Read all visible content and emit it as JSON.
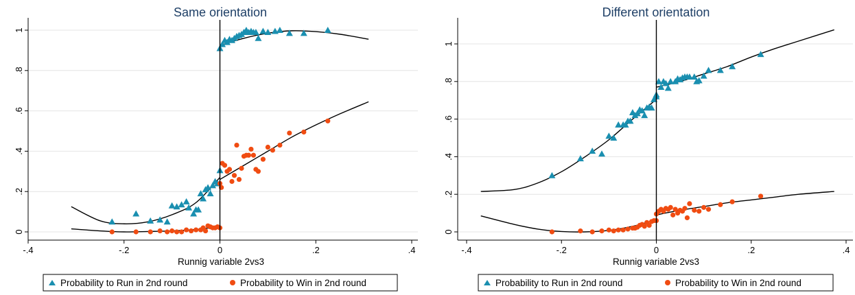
{
  "chart_data": [
    {
      "type": "scatter",
      "title": "Same orientation",
      "xlabel": "Runnig variable 2vs3",
      "ylabel": "",
      "xlim": [
        -0.4,
        0.4
      ],
      "ylim": [
        0,
        1
      ],
      "xticks": [
        -0.4,
        -0.2,
        0,
        0.2,
        0.4
      ],
      "xtick_labels": [
        "-.4",
        "-.2",
        "0",
        ".2",
        ".4"
      ],
      "yticks": [
        0,
        0.2,
        0.4,
        0.6,
        0.8,
        1
      ],
      "ytick_labels": [
        "0",
        ".2",
        ".4",
        ".6",
        ".8",
        "1"
      ],
      "grid": true,
      "cutoff": 0,
      "legend_position": "bottom",
      "colors": {
        "run": "#1a8fb0",
        "win": "#f04c12",
        "fit": "#000000",
        "grid": "#e4e4e4"
      },
      "series": [
        {
          "name": "Probability to Run in 2nd round",
          "marker": "triangle",
          "points": [
            [
              -0.225,
              0.05
            ],
            [
              -0.175,
              0.09
            ],
            [
              -0.145,
              0.055
            ],
            [
              -0.125,
              0.06
            ],
            [
              -0.11,
              0.05
            ],
            [
              -0.1,
              0.13
            ],
            [
              -0.09,
              0.125
            ],
            [
              -0.08,
              0.135
            ],
            [
              -0.07,
              0.15
            ],
            [
              -0.065,
              0.12
            ],
            [
              -0.055,
              0.09
            ],
            [
              -0.05,
              0.11
            ],
            [
              -0.045,
              0.11
            ],
            [
              -0.04,
              0.19
            ],
            [
              -0.035,
              0.165
            ],
            [
              -0.03,
              0.21
            ],
            [
              -0.025,
              0.22
            ],
            [
              -0.02,
              0.19
            ],
            [
              -0.015,
              0.23
            ],
            [
              -0.01,
              0.25
            ],
            [
              -0.005,
              0.24
            ],
            [
              0,
              0.305
            ],
            [
              0,
              0.91
            ],
            [
              0.005,
              0.93
            ],
            [
              0.01,
              0.95
            ],
            [
              0.015,
              0.94
            ],
            [
              0.02,
              0.955
            ],
            [
              0.025,
              0.95
            ],
            [
              0.03,
              0.96
            ],
            [
              0.035,
              0.97
            ],
            [
              0.04,
              0.975
            ],
            [
              0.045,
              0.98
            ],
            [
              0.05,
              0.99
            ],
            [
              0.055,
              1.0
            ],
            [
              0.06,
              0.99
            ],
            [
              0.065,
              0.995
            ],
            [
              0.07,
              0.99
            ],
            [
              0.075,
              0.99
            ],
            [
              0.08,
              0.96
            ],
            [
              0.09,
              0.995
            ],
            [
              0.1,
              0.99
            ],
            [
              0.115,
              0.995
            ],
            [
              0.125,
              1.0
            ],
            [
              0.145,
              0.985
            ],
            [
              0.175,
              0.985
            ],
            [
              0.225,
              1.0
            ]
          ]
        },
        {
          "name": "Probability to Win in 2nd round",
          "marker": "circle",
          "points": [
            [
              -0.225,
              0.0
            ],
            [
              -0.175,
              0.0
            ],
            [
              -0.145,
              0.0
            ],
            [
              -0.125,
              0.005
            ],
            [
              -0.11,
              0.0
            ],
            [
              -0.1,
              0.005
            ],
            [
              -0.09,
              0.0
            ],
            [
              -0.08,
              0.0
            ],
            [
              -0.07,
              0.01
            ],
            [
              -0.06,
              0.005
            ],
            [
              -0.05,
              0.01
            ],
            [
              -0.04,
              0.01
            ],
            [
              -0.035,
              0.02
            ],
            [
              -0.03,
              0.005
            ],
            [
              -0.025,
              0.03
            ],
            [
              -0.02,
              0.025
            ],
            [
              -0.015,
              0.02
            ],
            [
              -0.01,
              0.02
            ],
            [
              -0.005,
              0.025
            ],
            [
              0,
              0.02
            ],
            [
              0,
              0.24
            ],
            [
              0.003,
              0.22
            ],
            [
              0.005,
              0.34
            ],
            [
              0.01,
              0.33
            ],
            [
              0.015,
              0.3
            ],
            [
              0.02,
              0.31
            ],
            [
              0.025,
              0.25
            ],
            [
              0.03,
              0.28
            ],
            [
              0.035,
              0.43
            ],
            [
              0.04,
              0.26
            ],
            [
              0.045,
              0.315
            ],
            [
              0.05,
              0.375
            ],
            [
              0.055,
              0.38
            ],
            [
              0.06,
              0.38
            ],
            [
              0.065,
              0.41
            ],
            [
              0.07,
              0.38
            ],
            [
              0.075,
              0.31
            ],
            [
              0.08,
              0.3
            ],
            [
              0.09,
              0.36
            ],
            [
              0.1,
              0.42
            ],
            [
              0.11,
              0.405
            ],
            [
              0.125,
              0.43
            ],
            [
              0.145,
              0.49
            ],
            [
              0.175,
              0.495
            ],
            [
              0.225,
              0.55
            ]
          ]
        }
      ],
      "fits": [
        {
          "series": "Probability to Run in 2nd round",
          "segment": "left",
          "points": [
            [
              -0.31,
              0.125
            ],
            [
              -0.25,
              0.055
            ],
            [
              -0.2,
              0.04
            ],
            [
              -0.15,
              0.05
            ],
            [
              -0.1,
              0.085
            ],
            [
              -0.05,
              0.145
            ],
            [
              0,
              0.27
            ]
          ]
        },
        {
          "series": "Probability to Run in 2nd round",
          "segment": "right",
          "points": [
            [
              0,
              0.925
            ],
            [
              0.05,
              0.96
            ],
            [
              0.1,
              0.985
            ],
            [
              0.15,
              0.997
            ],
            [
              0.2,
              0.993
            ],
            [
              0.25,
              0.98
            ],
            [
              0.31,
              0.955
            ]
          ]
        },
        {
          "series": "Probability to Win in 2nd round",
          "segment": "left",
          "points": [
            [
              -0.31,
              0.015
            ],
            [
              -0.25,
              0.005
            ],
            [
              -0.2,
              0.0
            ],
            [
              -0.15,
              0.002
            ],
            [
              -0.1,
              0.005
            ],
            [
              -0.05,
              0.012
            ],
            [
              0,
              0.025
            ]
          ]
        },
        {
          "series": "Probability to Win in 2nd round",
          "segment": "right",
          "points": [
            [
              0,
              0.26
            ],
            [
              0.05,
              0.33
            ],
            [
              0.1,
              0.4
            ],
            [
              0.15,
              0.47
            ],
            [
              0.2,
              0.53
            ],
            [
              0.25,
              0.585
            ],
            [
              0.31,
              0.645
            ]
          ]
        }
      ]
    },
    {
      "type": "scatter",
      "title": "Different orientation",
      "xlabel": "Runnig variable 2vs3",
      "ylabel": "",
      "xlim": [
        -0.4,
        0.4
      ],
      "ylim": [
        0,
        1
      ],
      "xticks": [
        -0.4,
        -0.2,
        0,
        0.2,
        0.4
      ],
      "xtick_labels": [
        "-.4",
        "-.2",
        "0",
        ".2",
        ".4"
      ],
      "yticks": [
        0,
        0.2,
        0.4,
        0.6,
        0.8,
        1
      ],
      "ytick_labels": [
        "0",
        ".2",
        ".4",
        ".6",
        ".8",
        "1"
      ],
      "grid": true,
      "cutoff": 0,
      "legend_position": "bottom",
      "colors": {
        "run": "#1a8fb0",
        "win": "#f04c12",
        "fit": "#000000",
        "grid": "#e4e4e4"
      },
      "series": [
        {
          "name": "Probability to Run in 2nd round",
          "marker": "triangle",
          "points": [
            [
              -0.22,
              0.3
            ],
            [
              -0.16,
              0.39
            ],
            [
              -0.135,
              0.43
            ],
            [
              -0.115,
              0.415
            ],
            [
              -0.1,
              0.51
            ],
            [
              -0.09,
              0.5
            ],
            [
              -0.08,
              0.57
            ],
            [
              -0.07,
              0.57
            ],
            [
              -0.065,
              0.57
            ],
            [
              -0.06,
              0.59
            ],
            [
              -0.055,
              0.59
            ],
            [
              -0.05,
              0.635
            ],
            [
              -0.045,
              0.62
            ],
            [
              -0.04,
              0.63
            ],
            [
              -0.035,
              0.65
            ],
            [
              -0.03,
              0.645
            ],
            [
              -0.025,
              0.62
            ],
            [
              -0.02,
              0.66
            ],
            [
              -0.015,
              0.665
            ],
            [
              -0.01,
              0.66
            ],
            [
              -0.005,
              0.705
            ],
            [
              0,
              0.72
            ],
            [
              0,
              0.73
            ],
            [
              0.005,
              0.8
            ],
            [
              0.01,
              0.77
            ],
            [
              0.015,
              0.8
            ],
            [
              0.02,
              0.79
            ],
            [
              0.025,
              0.765
            ],
            [
              0.03,
              0.8
            ],
            [
              0.04,
              0.8
            ],
            [
              0.045,
              0.815
            ],
            [
              0.05,
              0.81
            ],
            [
              0.055,
              0.82
            ],
            [
              0.06,
              0.825
            ],
            [
              0.065,
              0.825
            ],
            [
              0.07,
              0.825
            ],
            [
              0.08,
              0.825
            ],
            [
              0.085,
              0.8
            ],
            [
              0.09,
              0.805
            ],
            [
              0.1,
              0.83
            ],
            [
              0.11,
              0.86
            ],
            [
              0.135,
              0.86
            ],
            [
              0.16,
              0.88
            ],
            [
              0.22,
              0.945
            ]
          ]
        },
        {
          "name": "Probability to Win in 2nd round",
          "marker": "circle",
          "points": [
            [
              -0.22,
              0.0
            ],
            [
              -0.16,
              0.005
            ],
            [
              -0.135,
              0.0
            ],
            [
              -0.115,
              0.005
            ],
            [
              -0.1,
              0.01
            ],
            [
              -0.09,
              0.005
            ],
            [
              -0.08,
              0.01
            ],
            [
              -0.07,
              0.01
            ],
            [
              -0.06,
              0.015
            ],
            [
              -0.05,
              0.02
            ],
            [
              -0.045,
              0.02
            ],
            [
              -0.04,
              0.025
            ],
            [
              -0.035,
              0.035
            ],
            [
              -0.03,
              0.04
            ],
            [
              -0.025,
              0.03
            ],
            [
              -0.02,
              0.05
            ],
            [
              -0.015,
              0.035
            ],
            [
              -0.01,
              0.055
            ],
            [
              -0.005,
              0.06
            ],
            [
              0,
              0.06
            ],
            [
              0,
              0.095
            ],
            [
              0.005,
              0.11
            ],
            [
              0.01,
              0.12
            ],
            [
              0.015,
              0.11
            ],
            [
              0.02,
              0.125
            ],
            [
              0.025,
              0.12
            ],
            [
              0.03,
              0.13
            ],
            [
              0.035,
              0.09
            ],
            [
              0.04,
              0.12
            ],
            [
              0.045,
              0.1
            ],
            [
              0.05,
              0.115
            ],
            [
              0.055,
              0.11
            ],
            [
              0.06,
              0.125
            ],
            [
              0.065,
              0.075
            ],
            [
              0.07,
              0.15
            ],
            [
              0.08,
              0.115
            ],
            [
              0.09,
              0.11
            ],
            [
              0.1,
              0.13
            ],
            [
              0.11,
              0.12
            ],
            [
              0.135,
              0.145
            ],
            [
              0.16,
              0.16
            ],
            [
              0.22,
              0.19
            ]
          ]
        }
      ],
      "fits": [
        {
          "series": "Probability to Run in 2nd round",
          "segment": "left",
          "points": [
            [
              -0.37,
              0.215
            ],
            [
              -0.3,
              0.225
            ],
            [
              -0.25,
              0.26
            ],
            [
              -0.2,
              0.32
            ],
            [
              -0.15,
              0.4
            ],
            [
              -0.1,
              0.49
            ],
            [
              -0.05,
              0.6
            ],
            [
              0,
              0.705
            ]
          ]
        },
        {
          "series": "Probability to Run in 2nd round",
          "segment": "right",
          "points": [
            [
              0,
              0.77
            ],
            [
              0.05,
              0.8
            ],
            [
              0.1,
              0.84
            ],
            [
              0.15,
              0.88
            ],
            [
              0.2,
              0.93
            ],
            [
              0.25,
              0.975
            ],
            [
              0.3,
              1.015
            ],
            [
              0.375,
              1.075
            ]
          ]
        },
        {
          "series": "Probability to Win in 2nd round",
          "segment": "left",
          "points": [
            [
              -0.37,
              0.085
            ],
            [
              -0.3,
              0.04
            ],
            [
              -0.25,
              0.015
            ],
            [
              -0.2,
              0.002
            ],
            [
              -0.15,
              0.0
            ],
            [
              -0.1,
              0.008
            ],
            [
              -0.05,
              0.03
            ],
            [
              0,
              0.065
            ]
          ]
        },
        {
          "series": "Probability to Win in 2nd round",
          "segment": "right",
          "points": [
            [
              0,
              0.09
            ],
            [
              0.05,
              0.115
            ],
            [
              0.1,
              0.135
            ],
            [
              0.15,
              0.155
            ],
            [
              0.2,
              0.17
            ],
            [
              0.25,
              0.185
            ],
            [
              0.3,
              0.2
            ],
            [
              0.375,
              0.215
            ]
          ]
        }
      ]
    }
  ]
}
